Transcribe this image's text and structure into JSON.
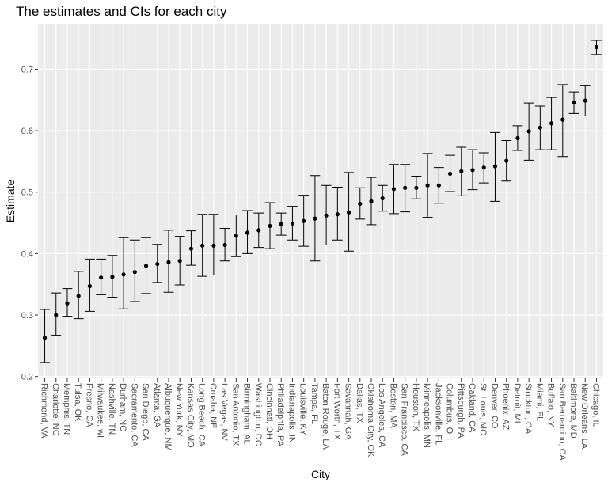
{
  "chart_data": {
    "type": "errorbar",
    "title": "The estimates and CIs for each city",
    "x_label": "City",
    "y_label": "Estimate",
    "categories": [
      "Richmond, VA",
      "Charlotte, NC",
      "Memphis, TN",
      "Tulsa, OK",
      "Fresno, CA",
      "Milwaukee, wI",
      "Nashville, TN",
      "Durham, NC",
      "Sacramento, CA",
      "San Diego, CA",
      "Atlanta, GA",
      "Albuquerque, NM",
      "New York, NY",
      "Kansas City, MO",
      "Long Beach, CA",
      "Omaha, NE",
      "Las Vegas, NV",
      "San Antonio, TX",
      "Birmingham, AL",
      "Washington, DC",
      "Cincinnati, OH",
      "Philadelphia, PA",
      "Indianapolis, IN",
      "Louisville, KY",
      "Tampa, FL",
      "Baton Rouge, LA",
      "Fort Worth, TX",
      "Savannah, GA",
      "Dallas, TX",
      "Oklahoma City, OK",
      "Los Angeles, CA",
      "Boston, MA",
      "San Francisco, CA",
      "Houston, TX",
      "Minneapolis, MN",
      "Jacksonville, FL",
      "Columbus, OH",
      "Pittsburgh, PA",
      "Oakland, CA",
      "St. Louis, MO",
      "Denver, CO",
      "Phoenix, AZ",
      "Detroit, MI",
      "Stockton, CA",
      "Miami, FL",
      "Buffalo, NY",
      "San Bernardino, CA",
      "Baltimore, MD",
      "New Orleans, LA",
      "Chicago, IL"
    ],
    "values": [
      0.263,
      0.3,
      0.319,
      0.331,
      0.347,
      0.361,
      0.362,
      0.366,
      0.37,
      0.38,
      0.383,
      0.386,
      0.388,
      0.408,
      0.413,
      0.413,
      0.414,
      0.429,
      0.434,
      0.438,
      0.445,
      0.448,
      0.449,
      0.453,
      0.457,
      0.462,
      0.464,
      0.467,
      0.481,
      0.485,
      0.49,
      0.505,
      0.507,
      0.507,
      0.511,
      0.511,
      0.53,
      0.534,
      0.536,
      0.54,
      0.542,
      0.551,
      0.588,
      0.599,
      0.605,
      0.612,
      0.618,
      0.646,
      0.649,
      0.736
    ],
    "lower": [
      0.223,
      0.267,
      0.298,
      0.294,
      0.306,
      0.333,
      0.329,
      0.31,
      0.322,
      0.335,
      0.353,
      0.337,
      0.349,
      0.381,
      0.363,
      0.365,
      0.388,
      0.395,
      0.4,
      0.41,
      0.408,
      0.43,
      0.422,
      0.412,
      0.388,
      0.414,
      0.422,
      0.404,
      0.456,
      0.447,
      0.469,
      0.465,
      0.468,
      0.489,
      0.459,
      0.482,
      0.501,
      0.494,
      0.504,
      0.515,
      0.485,
      0.518,
      0.568,
      0.552,
      0.569,
      0.569,
      0.558,
      0.628,
      0.624,
      0.724
    ],
    "upper": [
      0.309,
      0.336,
      0.343,
      0.371,
      0.391,
      0.391,
      0.397,
      0.426,
      0.422,
      0.426,
      0.415,
      0.438,
      0.428,
      0.437,
      0.464,
      0.464,
      0.441,
      0.463,
      0.47,
      0.466,
      0.483,
      0.466,
      0.477,
      0.495,
      0.527,
      0.511,
      0.508,
      0.532,
      0.507,
      0.524,
      0.511,
      0.545,
      0.545,
      0.526,
      0.563,
      0.54,
      0.56,
      0.573,
      0.569,
      0.564,
      0.597,
      0.584,
      0.608,
      0.645,
      0.64,
      0.654,
      0.675,
      0.663,
      0.673,
      0.747
    ],
    "color": "#000000",
    "ylim": [
      0.197,
      0.774
    ],
    "yticks": [
      0.2,
      0.3,
      0.4,
      0.5,
      0.6,
      0.7
    ],
    "grid": true
  }
}
